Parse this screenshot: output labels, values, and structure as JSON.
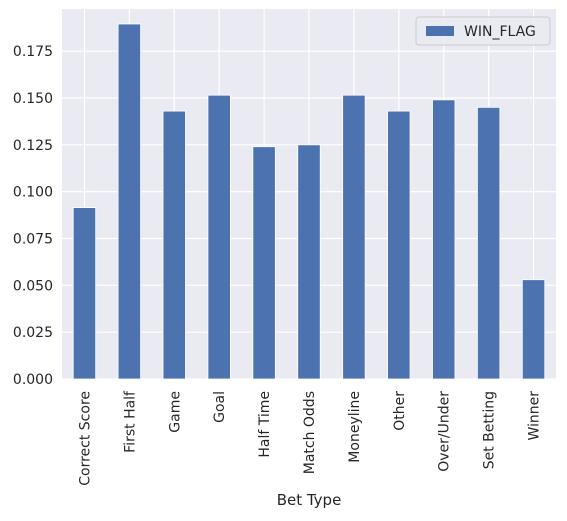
{
  "chart_data": {
    "type": "bar",
    "title": "",
    "xlabel": "Bet Type",
    "ylabel": "",
    "ylim": [
      0,
      0.1975
    ],
    "yticks": [
      0.0,
      0.025,
      0.05,
      0.075,
      0.1,
      0.125,
      0.15,
      0.175
    ],
    "ytick_labels": [
      "0.000",
      "0.025",
      "0.050",
      "0.075",
      "0.100",
      "0.125",
      "0.150",
      "0.175"
    ],
    "categories": [
      "Correct Score",
      "First Half",
      "Game",
      "Goal",
      "Half Time",
      "Match Odds",
      "Moneyline",
      "Other",
      "Over/Under",
      "Set Betting",
      "Winner"
    ],
    "series": [
      {
        "name": "WIN_FLAG",
        "color": "#4c72b0",
        "values": [
          0.0915,
          0.1895,
          0.143,
          0.1515,
          0.124,
          0.125,
          0.1515,
          0.143,
          0.149,
          0.145,
          0.053
        ]
      }
    ],
    "grid": true,
    "legend_position": "upper right",
    "plot_background": "#eaeaf2"
  }
}
